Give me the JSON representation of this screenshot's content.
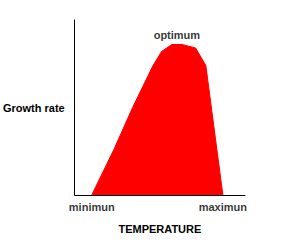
{
  "chart_data": {
    "type": "line",
    "x_label": "TEMPERATURE",
    "y_label": "Growth rate",
    "x": [
      10,
      23,
      34,
      46,
      51,
      57,
      63,
      71,
      77,
      87
    ],
    "values": [
      0,
      26,
      50,
      74,
      82,
      86,
      86,
      84,
      74,
      0
    ],
    "color": "#ff0000",
    "xlim": [
      0,
      100
    ],
    "ylim": [
      0,
      100
    ],
    "grid": false,
    "tick_labels": false,
    "annotations": [
      {
        "text": "minimun",
        "x": 10,
        "y": 0
      },
      {
        "text": "optimum",
        "x": 60,
        "y": 86
      },
      {
        "text": "maximun",
        "x": 87,
        "y": 0
      }
    ]
  }
}
